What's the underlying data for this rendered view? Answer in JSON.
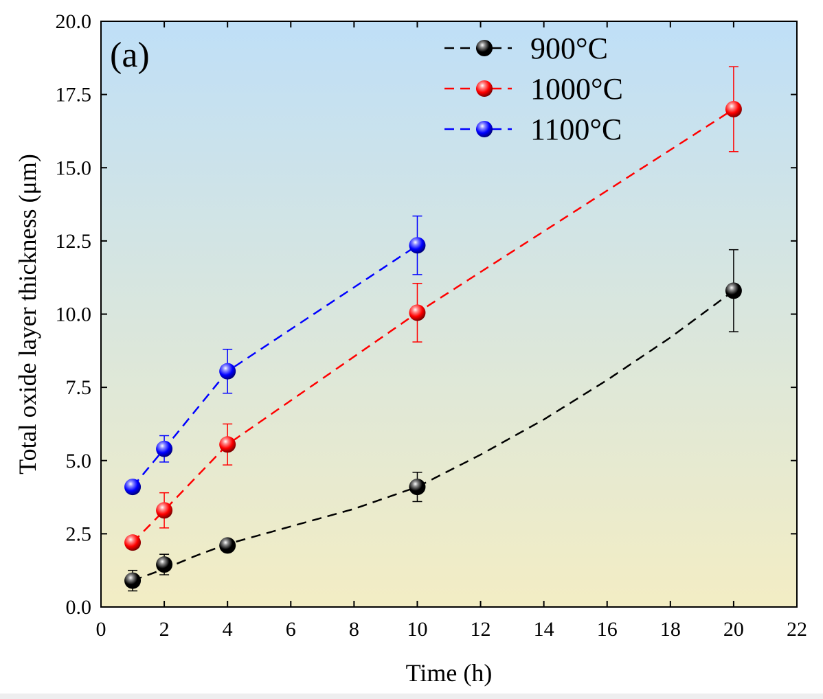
{
  "chart_data": {
    "type": "scatter",
    "panel_label": "(a)",
    "title": "",
    "xlabel": "Time (h)",
    "ylabel": "Total oxide layer thickness (μm)",
    "xlim": [
      0,
      22
    ],
    "ylim": [
      0,
      20
    ],
    "xticks": [
      "0",
      "2",
      "4",
      "6",
      "8",
      "10",
      "12",
      "14",
      "16",
      "18",
      "20",
      "22"
    ],
    "yticks": [
      "0.0",
      "2.5",
      "5.0",
      "7.5",
      "10.0",
      "12.5",
      "15.0",
      "17.5",
      "20.0"
    ],
    "legend_position": "top-right",
    "background_gradient": {
      "top": "#bfdff7",
      "bottom": "#f3edc4"
    },
    "series": [
      {
        "name": "900°C",
        "color": "#000000",
        "x": [
          1,
          2,
          4,
          10,
          20
        ],
        "y": [
          0.9,
          1.45,
          2.1,
          4.1,
          10.8
        ],
        "err": [
          0.35,
          0.35,
          0.15,
          0.5,
          1.4
        ],
        "fit": [
          [
            1,
            0.9
          ],
          [
            2,
            1.3
          ],
          [
            3,
            1.75
          ],
          [
            4,
            2.15
          ],
          [
            6,
            2.75
          ],
          [
            8,
            3.35
          ],
          [
            10,
            4.1
          ],
          [
            12,
            5.2
          ],
          [
            14,
            6.4
          ],
          [
            16,
            7.75
          ],
          [
            18,
            9.2
          ],
          [
            20,
            10.8
          ]
        ]
      },
      {
        "name": "1000°C",
        "color": "#ff0000",
        "x": [
          1,
          2,
          4,
          10,
          20
        ],
        "y": [
          2.2,
          3.3,
          5.55,
          10.05,
          17.0
        ],
        "err": [
          0.2,
          0.6,
          0.7,
          1.0,
          1.45
        ],
        "fit": [
          [
            1,
            2.2
          ],
          [
            2,
            3.3
          ],
          [
            4,
            5.55
          ],
          [
            10,
            10.05
          ],
          [
            20,
            17.0
          ]
        ]
      },
      {
        "name": "1100°C",
        "color": "#0000ff",
        "x": [
          1,
          2,
          4,
          10
        ],
        "y": [
          4.1,
          5.4,
          8.05,
          12.35
        ],
        "err": [
          0.1,
          0.45,
          0.75,
          1.0
        ],
        "fit": [
          [
            1,
            4.1
          ],
          [
            2,
            5.4
          ],
          [
            4,
            8.05
          ],
          [
            10,
            12.35
          ]
        ]
      }
    ]
  }
}
